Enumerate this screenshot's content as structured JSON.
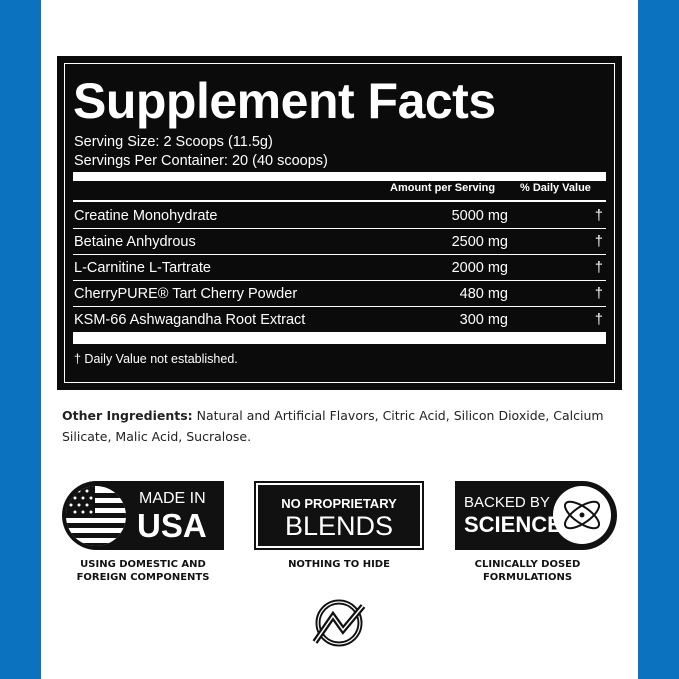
{
  "colors": {
    "side": "#0a72bf",
    "label_bg": "#0b0b0b"
  },
  "facts": {
    "title": "Supplement Facts",
    "serving_size": "Serving Size: 2 Scoops (11.5g)",
    "servings_per_container": "Servings Per Container: 20 (40 scoops)",
    "col_amount": "Amount per Serving",
    "col_dv": "% Daily Value",
    "rows": [
      {
        "name": "Creatine Monohydrate",
        "amount": "5000 mg",
        "dv": "†"
      },
      {
        "name": "Betaine Anhydrous",
        "amount": "2500 mg",
        "dv": "†"
      },
      {
        "name": "L-Carnitine L-Tartrate",
        "amount": "2000 mg",
        "dv": "†"
      },
      {
        "name": "CherryPURE® Tart Cherry Powder",
        "amount": "480 mg",
        "dv": "†"
      },
      {
        "name": "KSM-66 Ashwagandha Root Extract",
        "amount": "300 mg",
        "dv": "†"
      }
    ],
    "footnote": "† Daily Value not established."
  },
  "other": {
    "label": "Other Ingredients:",
    "text": " Natural and Artificial Flavors, Citric Acid, Silicon Dioxide, Calcium Silicate, Malic Acid, Sucralose."
  },
  "badges": {
    "usa": {
      "line1": "MADE IN",
      "line2": "USA",
      "caption1": "USING DOMESTIC AND",
      "caption2": "FOREIGN COMPONENTS",
      "icon": "us-flag-icon"
    },
    "blends": {
      "line1": "NO PROPRIETARY",
      "line2": "BLENDS",
      "caption": "NOTHING TO HIDE"
    },
    "science": {
      "line1": "BACKED BY",
      "line2": "SCIENCE",
      "caption1": "CLINICALLY DOSED",
      "caption2": "FORMULATIONS",
      "icon": "atom-icon"
    }
  },
  "logo": "brand-logo-icon"
}
